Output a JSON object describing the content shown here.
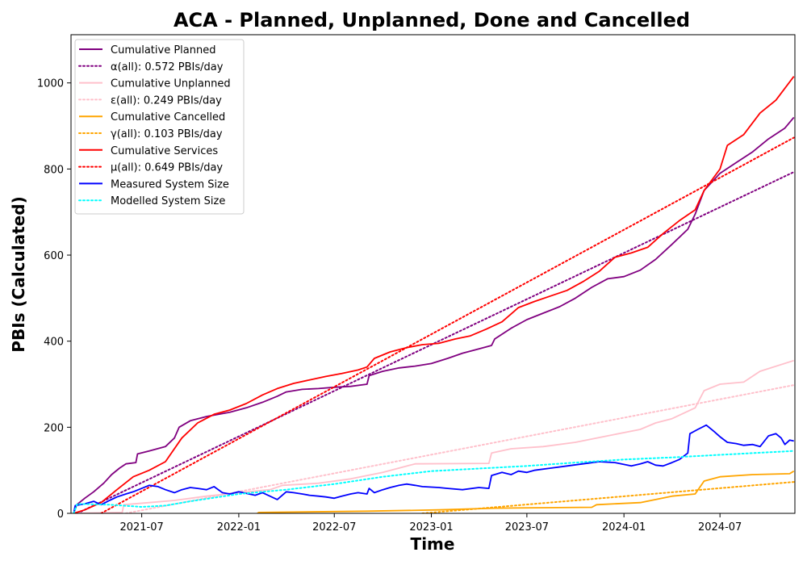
{
  "chart_data": {
    "type": "line",
    "title": "ACA - Planned, Unplanned, Done  and Cancelled",
    "xlabel": "Time",
    "ylabel": "PBIs (Calculated)",
    "xlim": [
      "2021-02-17",
      "2024-11-20"
    ],
    "ylim": [
      0,
      1112
    ],
    "x_ticks": [
      "2021-07",
      "2022-01",
      "2022-07",
      "2023-01",
      "2023-07",
      "2024-01",
      "2024-07"
    ],
    "y_ticks": [
      0,
      200,
      400,
      600,
      800,
      1000
    ],
    "legend_position": "upper-left",
    "series": [
      {
        "name": "Cumulative Planned",
        "color": "#800080",
        "style": "solid",
        "points": [
          [
            "2021-02-22",
            0
          ],
          [
            "2021-02-28",
            20
          ],
          [
            "2021-03-15",
            35
          ],
          [
            "2021-04-01",
            50
          ],
          [
            "2021-04-20",
            70
          ],
          [
            "2021-05-05",
            90
          ],
          [
            "2021-05-20",
            105
          ],
          [
            "2021-06-01",
            115
          ],
          [
            "2021-06-20",
            118
          ],
          [
            "2021-06-23",
            138
          ],
          [
            "2021-07-15",
            145
          ],
          [
            "2021-08-15",
            155
          ],
          [
            "2021-09-01",
            175
          ],
          [
            "2021-09-10",
            200
          ],
          [
            "2021-10-01",
            215
          ],
          [
            "2021-11-01",
            225
          ],
          [
            "2021-12-15",
            235
          ],
          [
            "2022-01-15",
            245
          ],
          [
            "2022-02-15",
            258
          ],
          [
            "2022-03-15",
            272
          ],
          [
            "2022-04-01",
            282
          ],
          [
            "2022-05-01",
            288
          ],
          [
            "2022-06-01",
            290
          ],
          [
            "2022-07-01",
            293
          ],
          [
            "2022-08-01",
            295
          ],
          [
            "2022-09-01",
            300
          ],
          [
            "2022-09-05",
            320
          ],
          [
            "2022-10-01",
            330
          ],
          [
            "2022-11-01",
            338
          ],
          [
            "2022-12-01",
            342
          ],
          [
            "2023-01-01",
            348
          ],
          [
            "2023-02-01",
            360
          ],
          [
            "2023-03-01",
            372
          ],
          [
            "2023-04-01",
            382
          ],
          [
            "2023-04-25",
            390
          ],
          [
            "2023-05-01",
            405
          ],
          [
            "2023-06-01",
            430
          ],
          [
            "2023-07-01",
            450
          ],
          [
            "2023-08-01",
            465
          ],
          [
            "2023-09-01",
            480
          ],
          [
            "2023-10-01",
            500
          ],
          [
            "2023-11-01",
            525
          ],
          [
            "2023-12-01",
            545
          ],
          [
            "2024-01-01",
            550
          ],
          [
            "2024-02-01",
            565
          ],
          [
            "2024-03-01",
            590
          ],
          [
            "2024-04-01",
            625
          ],
          [
            "2024-05-01",
            660
          ],
          [
            "2024-05-15",
            695
          ],
          [
            "2024-06-01",
            750
          ],
          [
            "2024-07-01",
            790
          ],
          [
            "2024-08-01",
            815
          ],
          [
            "2024-09-01",
            840
          ],
          [
            "2024-10-01",
            870
          ],
          [
            "2024-11-01",
            895
          ],
          [
            "2024-11-18",
            920
          ]
        ]
      },
      {
        "name": "α(all): 0.572 PBIs/day",
        "color": "#800080",
        "style": "dotted",
        "points": [
          [
            "2021-03-01",
            0
          ],
          [
            "2024-11-18",
            793
          ]
        ]
      },
      {
        "name": "Cumulative Unplanned",
        "color": "#ffc0cb",
        "style": "solid",
        "points": [
          [
            "2021-02-22",
            0
          ],
          [
            "2021-05-25",
            2
          ],
          [
            "2021-05-28",
            20
          ],
          [
            "2021-07-15",
            25
          ],
          [
            "2021-09-01",
            30
          ],
          [
            "2021-11-01",
            40
          ],
          [
            "2022-01-01",
            48
          ],
          [
            "2022-03-01",
            55
          ],
          [
            "2022-03-25",
            65
          ],
          [
            "2022-06-01",
            70
          ],
          [
            "2022-08-01",
            80
          ],
          [
            "2022-10-01",
            95
          ],
          [
            "2022-12-01",
            115
          ],
          [
            "2023-04-20",
            116
          ],
          [
            "2023-04-25",
            140
          ],
          [
            "2023-06-01",
            150
          ],
          [
            "2023-08-01",
            155
          ],
          [
            "2023-10-01",
            165
          ],
          [
            "2023-12-01",
            180
          ],
          [
            "2024-02-01",
            195
          ],
          [
            "2024-03-01",
            210
          ],
          [
            "2024-04-01",
            220
          ],
          [
            "2024-05-15",
            245
          ],
          [
            "2024-06-01",
            285
          ],
          [
            "2024-07-01",
            300
          ],
          [
            "2024-08-15",
            305
          ],
          [
            "2024-09-15",
            330
          ],
          [
            "2024-11-18",
            355
          ]
        ]
      },
      {
        "name": "ε(all): 0.249 PBIs/day",
        "color": "#ffc0cb",
        "style": "dotted",
        "points": [
          [
            "2021-06-01",
            0
          ],
          [
            "2024-11-18",
            298
          ]
        ]
      },
      {
        "name": "Cumulative Cancelled",
        "color": "#ffa500",
        "style": "solid",
        "points": [
          [
            "2022-02-05",
            0
          ],
          [
            "2022-02-08",
            2
          ],
          [
            "2022-09-01",
            5
          ],
          [
            "2023-01-15",
            8
          ],
          [
            "2023-05-01",
            12
          ],
          [
            "2023-11-01",
            14
          ],
          [
            "2023-11-10",
            20
          ],
          [
            "2024-02-01",
            25
          ],
          [
            "2024-04-01",
            40
          ],
          [
            "2024-05-15",
            45
          ],
          [
            "2024-06-01",
            75
          ],
          [
            "2024-07-01",
            85
          ],
          [
            "2024-09-01",
            90
          ],
          [
            "2024-11-10",
            92
          ],
          [
            "2024-11-18",
            98
          ]
        ]
      },
      {
        "name": "γ(all): 0.103 PBIs/day",
        "color": "#ffa500",
        "style": "dotted",
        "points": [
          [
            "2022-12-15",
            0
          ],
          [
            "2024-11-18",
            73
          ]
        ]
      },
      {
        "name": "Cumulative Services",
        "color": "#ff0000",
        "style": "solid",
        "points": [
          [
            "2021-02-22",
            0
          ],
          [
            "2021-03-15",
            8
          ],
          [
            "2021-04-15",
            25
          ],
          [
            "2021-05-15",
            55
          ],
          [
            "2021-06-15",
            85
          ],
          [
            "2021-07-15",
            100
          ],
          [
            "2021-08-15",
            120
          ],
          [
            "2021-09-15",
            175
          ],
          [
            "2021-10-15",
            210
          ],
          [
            "2021-11-15",
            230
          ],
          [
            "2021-12-15",
            240
          ],
          [
            "2022-01-15",
            255
          ],
          [
            "2022-02-15",
            275
          ],
          [
            "2022-03-15",
            290
          ],
          [
            "2022-04-15",
            302
          ],
          [
            "2022-05-15",
            310
          ],
          [
            "2022-06-15",
            318
          ],
          [
            "2022-07-15",
            325
          ],
          [
            "2022-08-15",
            333
          ],
          [
            "2022-09-01",
            340
          ],
          [
            "2022-09-15",
            360
          ],
          [
            "2022-10-15",
            375
          ],
          [
            "2022-11-15",
            385
          ],
          [
            "2022-12-15",
            392
          ],
          [
            "2023-01-15",
            395
          ],
          [
            "2023-02-15",
            405
          ],
          [
            "2023-03-15",
            412
          ],
          [
            "2023-04-15",
            428
          ],
          [
            "2023-05-15",
            445
          ],
          [
            "2023-06-15",
            478
          ],
          [
            "2023-07-15",
            492
          ],
          [
            "2023-08-15",
            505
          ],
          [
            "2023-09-15",
            518
          ],
          [
            "2023-10-15",
            538
          ],
          [
            "2023-11-15",
            562
          ],
          [
            "2023-12-15",
            595
          ],
          [
            "2024-01-15",
            605
          ],
          [
            "2024-02-15",
            618
          ],
          [
            "2024-03-15",
            650
          ],
          [
            "2024-04-15",
            680
          ],
          [
            "2024-05-15",
            705
          ],
          [
            "2024-06-01",
            750
          ],
          [
            "2024-07-01",
            800
          ],
          [
            "2024-07-15",
            855
          ],
          [
            "2024-08-15",
            880
          ],
          [
            "2024-09-15",
            930
          ],
          [
            "2024-10-15",
            960
          ],
          [
            "2024-11-18",
            1015
          ]
        ]
      },
      {
        "name": "μ(all): 0.649 PBIs/day",
        "color": "#ff0000",
        "style": "dotted",
        "points": [
          [
            "2021-04-15",
            0
          ],
          [
            "2024-11-18",
            873
          ]
        ]
      },
      {
        "name": "Measured System Size",
        "color": "#0000ff",
        "style": "solid",
        "points": [
          [
            "2021-02-22",
            0
          ],
          [
            "2021-02-25",
            18
          ],
          [
            "2021-03-15",
            22
          ],
          [
            "2021-04-01",
            28
          ],
          [
            "2021-04-15",
            20
          ],
          [
            "2021-05-01",
            30
          ],
          [
            "2021-05-15",
            38
          ],
          [
            "2021-06-01",
            45
          ],
          [
            "2021-06-15",
            50
          ],
          [
            "2021-07-01",
            58
          ],
          [
            "2021-07-15",
            65
          ],
          [
            "2021-08-01",
            62
          ],
          [
            "2021-08-15",
            55
          ],
          [
            "2021-09-01",
            48
          ],
          [
            "2021-09-15",
            55
          ],
          [
            "2021-10-01",
            60
          ],
          [
            "2021-10-15",
            58
          ],
          [
            "2021-11-01",
            55
          ],
          [
            "2021-11-15",
            62
          ],
          [
            "2021-12-01",
            48
          ],
          [
            "2021-12-15",
            45
          ],
          [
            "2022-01-01",
            50
          ],
          [
            "2022-02-01",
            42
          ],
          [
            "2022-02-15",
            48
          ],
          [
            "2022-03-01",
            40
          ],
          [
            "2022-03-15",
            32
          ],
          [
            "2022-04-01",
            50
          ],
          [
            "2022-04-15",
            48
          ],
          [
            "2022-05-01",
            45
          ],
          [
            "2022-05-15",
            42
          ],
          [
            "2022-06-01",
            40
          ],
          [
            "2022-06-15",
            38
          ],
          [
            "2022-07-01",
            35
          ],
          [
            "2022-07-15",
            40
          ],
          [
            "2022-08-01",
            45
          ],
          [
            "2022-08-15",
            48
          ],
          [
            "2022-09-01",
            45
          ],
          [
            "2022-09-05",
            58
          ],
          [
            "2022-09-15",
            48
          ],
          [
            "2022-10-01",
            55
          ],
          [
            "2022-10-15",
            60
          ],
          [
            "2022-11-01",
            65
          ],
          [
            "2022-11-15",
            68
          ],
          [
            "2022-12-01",
            65
          ],
          [
            "2022-12-15",
            62
          ],
          [
            "2023-01-15",
            60
          ],
          [
            "2023-02-01",
            58
          ],
          [
            "2023-03-01",
            55
          ],
          [
            "2023-04-01",
            60
          ],
          [
            "2023-04-20",
            58
          ],
          [
            "2023-04-25",
            88
          ],
          [
            "2023-05-15",
            95
          ],
          [
            "2023-06-01",
            90
          ],
          [
            "2023-06-15",
            98
          ],
          [
            "2023-07-01",
            95
          ],
          [
            "2023-07-15",
            100
          ],
          [
            "2023-08-15",
            105
          ],
          [
            "2023-09-15",
            110
          ],
          [
            "2023-10-15",
            115
          ],
          [
            "2023-11-15",
            120
          ],
          [
            "2023-12-15",
            118
          ],
          [
            "2024-01-15",
            110
          ],
          [
            "2024-02-01",
            115
          ],
          [
            "2024-02-15",
            120
          ],
          [
            "2024-03-01",
            112
          ],
          [
            "2024-03-15",
            110
          ],
          [
            "2024-04-01",
            118
          ],
          [
            "2024-04-15",
            125
          ],
          [
            "2024-05-01",
            140
          ],
          [
            "2024-05-05",
            185
          ],
          [
            "2024-05-20",
            195
          ],
          [
            "2024-06-05",
            205
          ],
          [
            "2024-06-20",
            190
          ],
          [
            "2024-07-01",
            178
          ],
          [
            "2024-07-15",
            165
          ],
          [
            "2024-08-01",
            162
          ],
          [
            "2024-08-15",
            158
          ],
          [
            "2024-09-01",
            160
          ],
          [
            "2024-09-15",
            155
          ],
          [
            "2024-10-01",
            180
          ],
          [
            "2024-10-15",
            185
          ],
          [
            "2024-10-25",
            175
          ],
          [
            "2024-11-01",
            160
          ],
          [
            "2024-11-10",
            170
          ],
          [
            "2024-11-18",
            168
          ]
        ]
      },
      {
        "name": "Modelled System Size",
        "color": "#00ffff",
        "style": "dotted",
        "points": [
          [
            "2021-02-22",
            0
          ],
          [
            "2021-03-01",
            22
          ],
          [
            "2021-05-01",
            20
          ],
          [
            "2021-07-01",
            15
          ],
          [
            "2021-08-15",
            18
          ],
          [
            "2021-10-01",
            28
          ],
          [
            "2022-01-01",
            45
          ],
          [
            "2022-04-01",
            55
          ],
          [
            "2022-07-01",
            68
          ],
          [
            "2022-10-01",
            85
          ],
          [
            "2023-01-01",
            98
          ],
          [
            "2023-04-01",
            104
          ],
          [
            "2023-07-01",
            110
          ],
          [
            "2023-10-01",
            118
          ],
          [
            "2024-01-01",
            125
          ],
          [
            "2024-04-01",
            130
          ],
          [
            "2024-07-01",
            136
          ],
          [
            "2024-11-18",
            145
          ]
        ]
      }
    ]
  }
}
